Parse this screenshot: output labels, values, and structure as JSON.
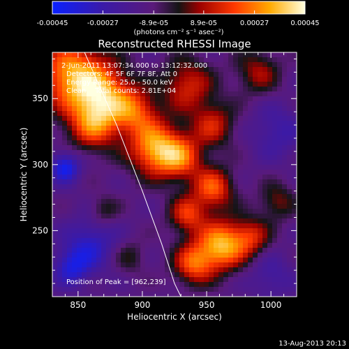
{
  "chart_data": {
    "type": "heatmap",
    "title": "Reconstructed RHESSI Image",
    "xlabel": "Heliocentric X (arcsec)",
    "ylabel": "Heliocentric Y (arcsec)",
    "xlim": [
      830,
      1020
    ],
    "ylim": [
      200,
      385
    ],
    "xticks": [
      "850",
      "900",
      "950",
      "1000"
    ],
    "xtick_values": [
      850,
      900,
      950,
      1000
    ],
    "yticks": [
      "250",
      "300",
      "350"
    ],
    "ytick_values": [
      250,
      300,
      350
    ],
    "colorbar": {
      "ticks": [
        "-0.00045",
        "-0.00027",
        "-8.9e-05",
        "8.9e-05",
        "0.00027",
        "0.00045"
      ],
      "tick_values": [
        -0.00045,
        -0.00027,
        -8.9e-05,
        8.9e-05,
        0.00027,
        0.00045
      ],
      "range": [
        -0.00045,
        0.00045
      ],
      "unit_label": "(photons cm⁻² s⁻¹ asec⁻²)"
    },
    "annotations": [
      "2-Jun-2011 13:07:34.000 to 13:12:32.000",
      "Detectors: 4F 5F 6F 7F 8F, Att 0",
      "Energy Range: 25.0 - 50.0 keV",
      "Clean    Total counts: 2.81E+04"
    ],
    "peak_label": "Position of Peak = [962,239]",
    "peak": [
      962,
      239
    ],
    "limb_curve": [
      [
        855,
        385
      ],
      [
        880,
        330
      ],
      [
        900,
        280
      ],
      [
        915,
        240
      ],
      [
        925,
        210
      ],
      [
        930,
        200
      ]
    ],
    "sources": [
      {
        "x": 845,
        "y": 368,
        "amp": 0.00042,
        "sigma": 18
      },
      {
        "x": 870,
        "y": 352,
        "amp": 0.00036,
        "sigma": 16
      },
      {
        "x": 862,
        "y": 330,
        "amp": 0.0003,
        "sigma": 14
      },
      {
        "x": 895,
        "y": 340,
        "amp": 0.00027,
        "sigma": 12
      },
      {
        "x": 910,
        "y": 312,
        "amp": 0.00043,
        "sigma": 14
      },
      {
        "x": 930,
        "y": 305,
        "amp": 0.0003,
        "sigma": 12
      },
      {
        "x": 955,
        "y": 282,
        "amp": 0.00033,
        "sigma": 11
      },
      {
        "x": 955,
        "y": 330,
        "amp": 0.00024,
        "sigma": 12
      },
      {
        "x": 935,
        "y": 360,
        "amp": 0.00026,
        "sigma": 14
      },
      {
        "x": 990,
        "y": 370,
        "amp": 0.0002,
        "sigma": 12
      },
      {
        "x": 962,
        "y": 239,
        "amp": 0.00045,
        "sigma": 13
      },
      {
        "x": 940,
        "y": 225,
        "amp": 0.00033,
        "sigma": 11
      },
      {
        "x": 935,
        "y": 262,
        "amp": 0.00028,
        "sigma": 10
      },
      {
        "x": 985,
        "y": 245,
        "amp": 0.00023,
        "sigma": 10
      },
      {
        "x": 1005,
        "y": 272,
        "amp": 0.00017,
        "sigma": 10
      },
      {
        "x": 870,
        "y": 265,
        "amp": 0.00014,
        "sigma": 8
      },
      {
        "x": 890,
        "y": 230,
        "amp": 0.00012,
        "sigma": 9
      },
      {
        "x": 840,
        "y": 298,
        "amp": -0.0003,
        "sigma": 8
      },
      {
        "x": 860,
        "y": 240,
        "amp": -0.0002,
        "sigma": 14
      },
      {
        "x": 845,
        "y": 222,
        "amp": -0.00022,
        "sigma": 10
      },
      {
        "x": 1005,
        "y": 325,
        "amp": -0.00014,
        "sigma": 14
      },
      {
        "x": 1000,
        "y": 215,
        "amp": -0.00012,
        "sigma": 12
      }
    ]
  },
  "footer": {
    "date": "13-Aug-2013 20:13"
  },
  "colors": {
    "background": "#000000",
    "foreground": "#ffffff"
  }
}
